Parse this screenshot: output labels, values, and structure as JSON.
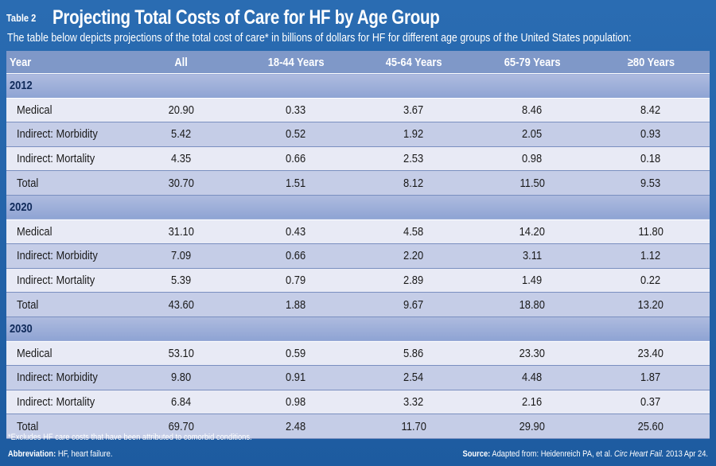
{
  "table_label": "Table 2",
  "title": "Projecting Total Costs of Care for HF by Age Group",
  "subtitle": "The table below depicts projections of the total cost of care* in billions of dollars for HF for different age groups of the United States population:",
  "columns": [
    "Year",
    "All",
    "18-44 Years",
    "45-64 Years",
    "65-79 Years",
    "≥80 Years"
  ],
  "groups": [
    {
      "year": "2012",
      "rows": [
        {
          "label": "Medical",
          "values": [
            "20.90",
            "0.33",
            "3.67",
            "8.46",
            "8.42"
          ]
        },
        {
          "label": "Indirect: Morbidity",
          "values": [
            "5.42",
            "0.52",
            "1.92",
            "2.05",
            "0.93"
          ]
        },
        {
          "label": "Indirect: Mortality",
          "values": [
            "4.35",
            "0.66",
            "2.53",
            "0.98",
            "0.18"
          ]
        },
        {
          "label": "Total",
          "values": [
            "30.70",
            "1.51",
            "8.12",
            "11.50",
            "9.53"
          ]
        }
      ]
    },
    {
      "year": "2020",
      "rows": [
        {
          "label": "Medical",
          "values": [
            "31.10",
            "0.43",
            "4.58",
            "14.20",
            "11.80"
          ]
        },
        {
          "label": "Indirect: Morbidity",
          "values": [
            "7.09",
            "0.66",
            "2.20",
            "3.11",
            "1.12"
          ]
        },
        {
          "label": "Indirect: Mortality",
          "values": [
            "5.39",
            "0.79",
            "2.89",
            "1.49",
            "0.22"
          ]
        },
        {
          "label": "Total",
          "values": [
            "43.60",
            "1.88",
            "9.67",
            "18.80",
            "13.20"
          ]
        }
      ]
    },
    {
      "year": "2030",
      "rows": [
        {
          "label": "Medical",
          "values": [
            "53.10",
            "0.59",
            "5.86",
            "23.30",
            "23.40"
          ]
        },
        {
          "label": "Indirect: Morbidity",
          "values": [
            "9.80",
            "0.91",
            "2.54",
            "4.48",
            "1.87"
          ]
        },
        {
          "label": "Indirect: Mortality",
          "values": [
            "6.84",
            "0.98",
            "3.32",
            "2.16",
            "0.37"
          ]
        },
        {
          "label": "Total",
          "values": [
            "69.70",
            "2.48",
            "11.70",
            "29.90",
            "25.60"
          ]
        }
      ]
    }
  ],
  "footnote": "*Excludes HF care costs that have been attributed to comorbid conditions.",
  "abbreviation": {
    "label": "Abbreviation:",
    "text": "HF, heart failure."
  },
  "source": {
    "label": "Source:",
    "text": "Adapted from: Heidenreich PA, et al.",
    "journal": "Circ Heart Fail.",
    "date": "2013 Apr 24."
  }
}
